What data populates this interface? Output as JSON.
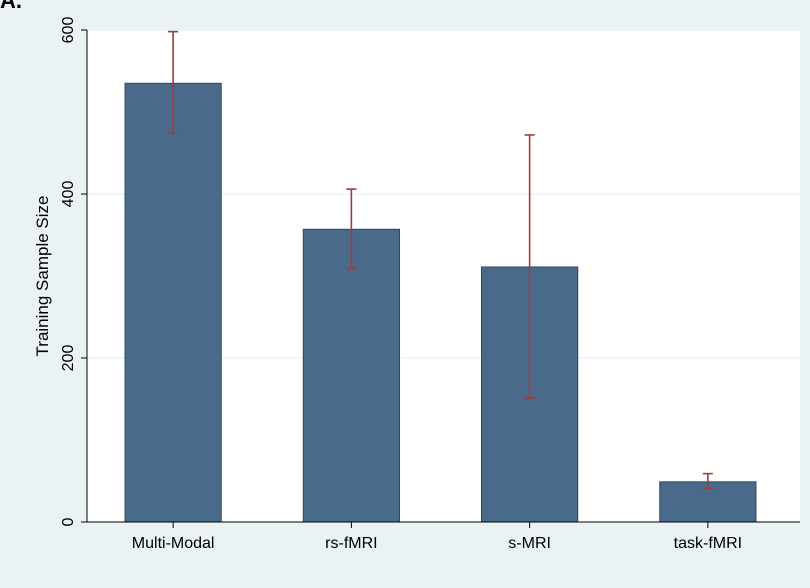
{
  "panel_label": "A.",
  "chart_data": {
    "type": "bar",
    "title": "",
    "xlabel": "",
    "ylabel": "Training Sample Size",
    "categories": [
      "Multi-Modal",
      "rs-fMRI",
      "s-MRI",
      "task-fMRI"
    ],
    "values": [
      535,
      357,
      311,
      49
    ],
    "error_bars": [
      {
        "low": 474,
        "high": 598
      },
      {
        "low": 309,
        "high": 406
      },
      {
        "low": 151,
        "high": 472
      },
      {
        "low": 41,
        "high": 59
      }
    ],
    "ylim": [
      0,
      600
    ],
    "yticks": [
      0,
      200,
      400,
      600
    ],
    "grid": true,
    "colors": {
      "bar": "#4a6a8c",
      "bar_edge": "#2f4a66",
      "error_bar": "#a23b3b",
      "plot_background": "#ffffff",
      "outer_background": "#eaf2f3",
      "grid": "#e6eef0"
    }
  }
}
